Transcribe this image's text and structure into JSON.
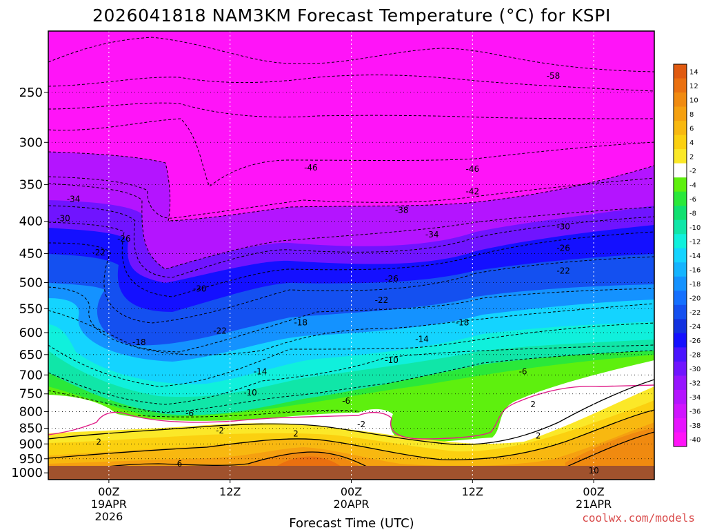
{
  "chart_data": {
    "type": "heatmap",
    "title": "2026041818 NAM3KM Forecast Temperature (°C) for KSPI",
    "xlabel": "Forecast Time (UTC)",
    "ylabel": "",
    "y_scale": "log-pressure (hPa), inverted",
    "y_ticks": [
      250,
      300,
      350,
      400,
      450,
      500,
      550,
      600,
      650,
      700,
      750,
      800,
      850,
      900,
      950,
      1000
    ],
    "y_range": [
      1025,
      200
    ],
    "x_ticks": [
      {
        "hour": 0,
        "lines": [
          "00Z",
          "19APR",
          "2026"
        ]
      },
      {
        "hour": 12,
        "lines": [
          "12Z"
        ]
      },
      {
        "hour": 24,
        "lines": [
          "00Z",
          "20APR"
        ]
      },
      {
        "hour": 36,
        "lines": [
          "12Z"
        ]
      },
      {
        "hour": 48,
        "lines": [
          "00Z",
          "21APR"
        ]
      }
    ],
    "x_range": [
      -6,
      54
    ],
    "colorbar": {
      "ticks": [
        14,
        12,
        10,
        8,
        6,
        4,
        2,
        -2,
        -4,
        -6,
        -8,
        -10,
        -12,
        -14,
        -16,
        -18,
        -20,
        -22,
        -24,
        -26,
        -28,
        -30,
        -32,
        -34,
        -36,
        -38,
        -40
      ],
      "colors": [
        "#e05a10",
        "#ea7010",
        "#f08a10",
        "#f5a010",
        "#f8b810",
        "#fbd010",
        "#fbe828",
        "#ffffff",
        "#5ef00e",
        "#2ae83a",
        "#10e070",
        "#10e6a8",
        "#10f0dc",
        "#14d4ff",
        "#14b4ff",
        "#1492ff",
        "#1470ff",
        "#1450f0",
        "#1232e0",
        "#1410ff",
        "#4a14ff",
        "#7014ff",
        "#9614ff",
        "#b414ff",
        "#d014ff",
        "#e614ff",
        "#ff14f8"
      ]
    },
    "contour_labels": [
      {
        "text": "-58",
        "hour": 44,
        "p": 235
      },
      {
        "text": "-46",
        "hour": 20,
        "p": 328
      },
      {
        "text": "-46",
        "hour": 36,
        "p": 330
      },
      {
        "text": "-42",
        "hour": 36,
        "p": 358
      },
      {
        "text": "-38",
        "hour": 29,
        "p": 383
      },
      {
        "text": "-34",
        "hour": -3.5,
        "p": 368
      },
      {
        "text": "-34",
        "hour": 32,
        "p": 419
      },
      {
        "text": "-30",
        "hour": -4.5,
        "p": 395
      },
      {
        "text": "-30",
        "hour": 45,
        "p": 407
      },
      {
        "text": "-30",
        "hour": 9,
        "p": 510
      },
      {
        "text": "-26",
        "hour": 1.5,
        "p": 425
      },
      {
        "text": "-26",
        "hour": 45,
        "p": 440
      },
      {
        "text": "-26",
        "hour": 28,
        "p": 492
      },
      {
        "text": "-22",
        "hour": -1,
        "p": 447
      },
      {
        "text": "-22",
        "hour": 45,
        "p": 478
      },
      {
        "text": "-22",
        "hour": 27,
        "p": 532
      },
      {
        "text": "-22",
        "hour": 11,
        "p": 595
      },
      {
        "text": "-18",
        "hour": 19,
        "p": 577
      },
      {
        "text": "-18",
        "hour": 35,
        "p": 577
      },
      {
        "text": "-18",
        "hour": 3,
        "p": 620
      },
      {
        "text": "-14",
        "hour": 31,
        "p": 613
      },
      {
        "text": "-14",
        "hour": 15,
        "p": 690
      },
      {
        "text": "-10",
        "hour": 28,
        "p": 662
      },
      {
        "text": "-10",
        "hour": 14,
        "p": 745
      },
      {
        "text": "-6",
        "hour": 41,
        "p": 690
      },
      {
        "text": "-6",
        "hour": 23.5,
        "p": 768
      },
      {
        "text": "-6",
        "hour": 8,
        "p": 803
      },
      {
        "text": "-2",
        "hour": 25,
        "p": 836
      },
      {
        "text": "-2",
        "hour": 11,
        "p": 855
      },
      {
        "text": "2",
        "hour": 42,
        "p": 777
      },
      {
        "text": "2",
        "hour": 18.5,
        "p": 865
      },
      {
        "text": "2",
        "hour": 42.5,
        "p": 872
      },
      {
        "text": "2",
        "hour": -1,
        "p": 892
      },
      {
        "text": "6",
        "hour": 7,
        "p": 965
      },
      {
        "text": "10",
        "hour": 48,
        "p": 990
      }
    ]
  },
  "credit": "coolwx.com/models"
}
